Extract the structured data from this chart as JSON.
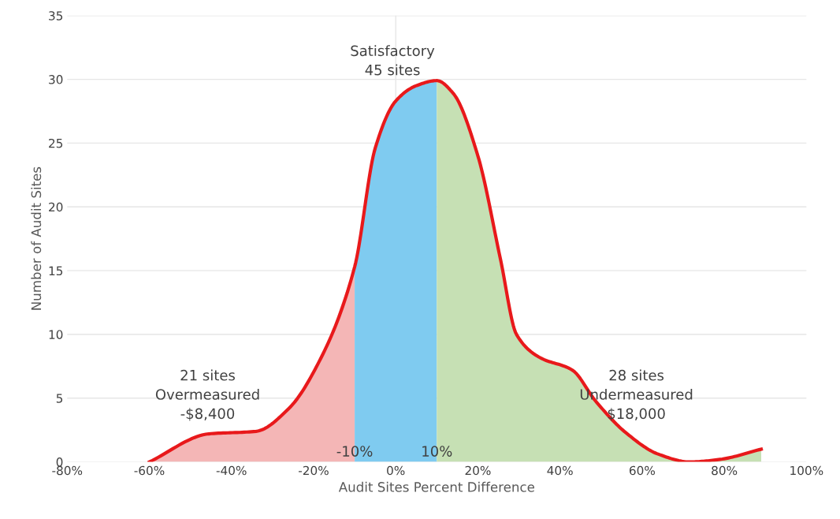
{
  "chart_data": {
    "type": "area",
    "xlabel": "Audit Sites Percent Difference",
    "ylabel": "Number of Audit Sites",
    "xlim": [
      -80,
      100
    ],
    "ylim": [
      0,
      35
    ],
    "xticks": [
      {
        "value": -80,
        "label": "-80%"
      },
      {
        "value": -60,
        "label": "-60%"
      },
      {
        "value": -40,
        "label": "-40%"
      },
      {
        "value": -20,
        "label": "-20%"
      },
      {
        "value": 0,
        "label": "0%"
      },
      {
        "value": 20,
        "label": "20%"
      },
      {
        "value": 40,
        "label": "40%"
      },
      {
        "value": 60,
        "label": "60%"
      },
      {
        "value": 80,
        "label": "80%"
      },
      {
        "value": 100,
        "label": "100%"
      }
    ],
    "yticks": [
      0,
      5,
      10,
      15,
      20,
      25,
      30,
      35
    ],
    "grid": "y",
    "series": [
      {
        "color": "#f4b6b6",
        "x": [
          -60,
          -45.5,
          -34,
          -26,
          -18.6,
          -10
        ],
        "values": [
          0,
          2.2,
          2.4,
          4.2,
          7.9,
          15.3
        ]
      },
      {
        "color": "#7fcbf0",
        "x": [
          -10,
          -5,
          0,
          5,
          10
        ],
        "values": [
          15.3,
          24.6,
          28.3,
          29.5,
          29.9
        ]
      },
      {
        "color": "#c6e0b4",
        "x": [
          10,
          14,
          20,
          25.5,
          29.4,
          35,
          43,
          48.6,
          56,
          64,
          71.6,
          79,
          89
        ],
        "values": [
          29.9,
          28.9,
          24,
          15.9,
          10,
          8.2,
          7.2,
          4.8,
          2.3,
          0.6,
          0,
          0.2,
          1.0
        ]
      },
      {
        "type": "line",
        "color": "#e8191b",
        "x": [
          -60,
          -45.5,
          -34,
          -26,
          -18.6,
          -10,
          -5,
          0,
          5,
          10,
          14,
          20,
          25.5,
          29.4,
          35,
          43,
          48.6,
          56,
          64,
          71.6,
          79,
          89
        ],
        "values": [
          0,
          2.2,
          2.4,
          4.2,
          7.9,
          15.3,
          24.6,
          28.3,
          29.5,
          29.9,
          28.9,
          24,
          15.9,
          10,
          8.2,
          7.2,
          4.8,
          2.3,
          0.6,
          0,
          0.2,
          1.0
        ]
      }
    ],
    "ref_lines": [
      {
        "axis": "x",
        "value": 0,
        "color": "#e6e6e6"
      }
    ],
    "annotations": [
      "Satisfactory\n45 sites",
      "21 sites\nOvermeasured\n-$8,400",
      "28 sites\nUndermeasured\n$18,000",
      {
        "text": "-10%",
        "x": -10,
        "y": 0.2
      },
      {
        "text": "10%",
        "x": 10,
        "y": 0.2
      }
    ]
  }
}
